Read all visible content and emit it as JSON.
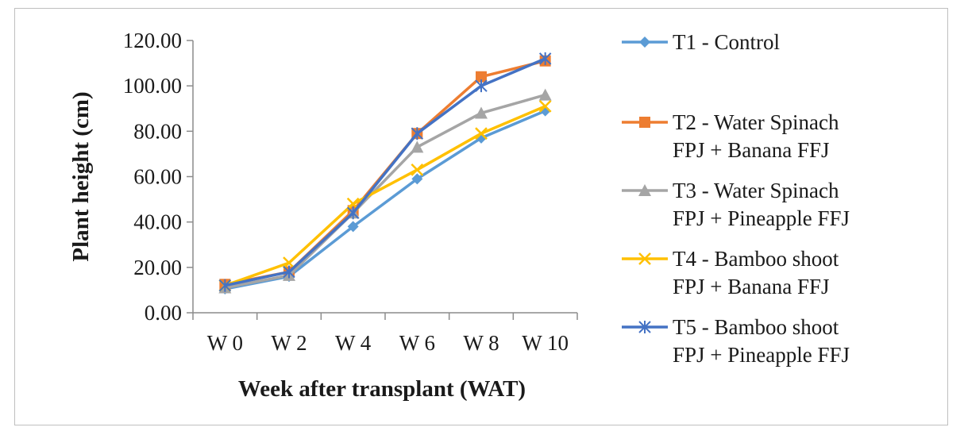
{
  "chart_data": {
    "type": "line",
    "title": "",
    "xlabel": "Week after transplant  (WAT)",
    "ylabel": "Plant height (cm)",
    "categories": [
      "W 0",
      "W 2",
      "W 4",
      "W 6",
      "W 8",
      "W 10"
    ],
    "ylim": [
      0,
      120
    ],
    "yticks": [
      "0.00",
      "20.00",
      "40.00",
      "60.00",
      "80.00",
      "100.00",
      "120.00"
    ],
    "grid": false,
    "legend_position": "right",
    "series": [
      {
        "name": "T1 - Control",
        "name_lines": [
          "T1 - Control"
        ],
        "color": "#5B9BD5",
        "marker": "diamond",
        "values": [
          10.5,
          16,
          38,
          59,
          77,
          89
        ]
      },
      {
        "name": "T2 - Water Spinach FPJ + Banana FFJ",
        "name_lines": [
          "T2 - Water Spinach",
          "FPJ + Banana FFJ"
        ],
        "color": "#ED7D31",
        "marker": "square",
        "values": [
          12.5,
          18,
          45,
          79,
          104,
          111
        ]
      },
      {
        "name": "T3 - Water Spinach FPJ + Pineapple FFJ",
        "name_lines": [
          "T3 - Water Spinach",
          "FPJ + Pineapple FFJ"
        ],
        "color": "#A5A5A5",
        "marker": "triangle",
        "values": [
          11,
          16.5,
          44,
          73,
          88,
          96
        ]
      },
      {
        "name": "T4 - Bamboo shoot FPJ + Banana FFJ",
        "name_lines": [
          "T4 - Bamboo shoot",
          "FPJ + Banana FFJ"
        ],
        "color": "#FFC000",
        "marker": "x",
        "values": [
          12,
          22,
          48,
          63,
          79,
          91
        ]
      },
      {
        "name": "T5 - Bamboo shoot FPJ + Pineapple FFJ",
        "name_lines": [
          "T5 - Bamboo shoot",
          "FPJ + Pineapple FFJ"
        ],
        "color": "#4472C4",
        "marker": "star",
        "values": [
          12,
          18,
          44,
          79,
          100,
          112
        ]
      }
    ]
  }
}
